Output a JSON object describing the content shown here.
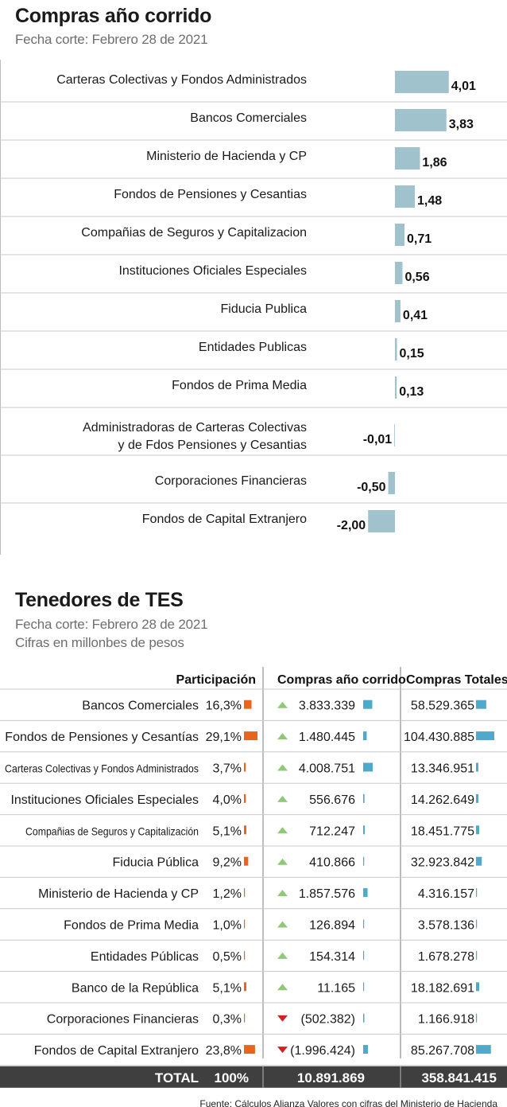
{
  "top": {
    "title": "Compras año corrido",
    "subtitle": "Fecha corte: Febrero 28 de 2021"
  },
  "bottom": {
    "title": "Tenedores de TES",
    "subtitle1": "Fecha corte: Febrero 28 de 2021",
    "subtitle2": "Cifras en millonbes de pesos",
    "headers": {
      "participacion": "Participación",
      "compras": "Compras año corrido",
      "totales": "Compras Totales"
    },
    "total": {
      "label": "TOTAL",
      "participacion": "100%",
      "compras": "10.891.869",
      "totales": "358.841.415"
    },
    "source": "Fuente:  Cálculos Alianza Valores con cifras del Ministerio de Hacienda"
  },
  "colors": {
    "bar": "#9fc2cc",
    "orange": "#e8651e",
    "blue": "#4fa9c9",
    "green": "#90c878",
    "red": "#d32020",
    "totalbg": "#3f3f3f"
  },
  "chart_data": [
    {
      "type": "bar",
      "orientation": "horizontal",
      "title": "Compras año corrido",
      "categories": [
        "Carteras Colectivas y Fondos Administrados",
        "Bancos Comerciales",
        "Ministerio de Hacienda y CP",
        "Fondos de Pensiones y Cesantias",
        "Compañias de Seguros y Capitalizacion",
        "Instituciones Oficiales Especiales",
        "Fiducia Publica",
        "Entidades Publicas",
        "Fondos de Prima Media",
        [
          "Administradoras de Carteras Colectivas",
          "y de Fdos Pensiones y Cesantias"
        ],
        "Corporaciones Financieras",
        "Fondos de Capital Extranjero"
      ],
      "values": [
        4.01,
        3.83,
        1.86,
        1.48,
        0.71,
        0.56,
        0.41,
        0.15,
        0.13,
        -0.01,
        -0.5,
        -2.0
      ],
      "labels": [
        "4,01",
        "3,83",
        "1,86",
        "1,48",
        "0,71",
        "0,56",
        "0,41",
        "0,15",
        "0,13",
        "-0,01",
        "-0,50",
        "-2,00"
      ]
    },
    {
      "type": "table",
      "title": "Tenedores de TES",
      "rows": [
        {
          "name": "Bancos Comerciales",
          "part_label": "16,3%",
          "part": 16.3,
          "trend": "up",
          "compras_label": "3.833.339",
          "compras": 3833339,
          "totales_label": "58.529.365",
          "totales": 58529365
        },
        {
          "name": "Fondos de Pensiones y Cesantías",
          "part_label": "29,1%",
          "part": 29.1,
          "trend": "up",
          "compras_label": "1.480.445",
          "compras": 1480445,
          "totales_label": "104.430.885",
          "totales": 104430885
        },
        {
          "name": "Carteras Colectivas y Fondos Administrados",
          "part_label": "3,7%",
          "part": 3.7,
          "trend": "up",
          "compras_label": "4.008.751",
          "compras": 4008751,
          "totales_label": "13.346.951",
          "totales": 13346951
        },
        {
          "name": "Instituciones Oficiales Especiales",
          "part_label": "4,0%",
          "part": 4.0,
          "trend": "up",
          "compras_label": "556.676",
          "compras": 556676,
          "totales_label": "14.262.649",
          "totales": 14262649
        },
        {
          "name": "Compañias de Seguros y Capitalización",
          "part_label": "5,1%",
          "part": 5.1,
          "trend": "up",
          "compras_label": "712.247",
          "compras": 712247,
          "totales_label": "18.451.775",
          "totales": 18451775
        },
        {
          "name": "Fiducia Pública",
          "part_label": "9,2%",
          "part": 9.2,
          "trend": "up",
          "compras_label": "410.866",
          "compras": 410866,
          "totales_label": "32.923.842",
          "totales": 32923842
        },
        {
          "name": "Ministerio de Hacienda y CP",
          "part_label": "1,2%",
          "part": 1.2,
          "trend": "up",
          "compras_label": "1.857.576",
          "compras": 1857576,
          "totales_label": "4.316.157",
          "totales": 4316157
        },
        {
          "name": "Fondos de Prima Media",
          "part_label": "1,0%",
          "part": 1.0,
          "trend": "up",
          "compras_label": "126.894",
          "compras": 126894,
          "totales_label": "3.578.136",
          "totales": 3578136
        },
        {
          "name": "Entidades Públicas",
          "part_label": "0,5%",
          "part": 0.5,
          "trend": "up",
          "compras_label": "154.314",
          "compras": 154314,
          "totales_label": "1.678.278",
          "totales": 1678278
        },
        {
          "name": "Banco de la República",
          "part_label": "5,1%",
          "part": 5.1,
          "trend": "up",
          "compras_label": "11.165",
          "compras": 11165,
          "totales_label": "18.182.691",
          "totales": 18182691
        },
        {
          "name": "Corporaciones Financieras",
          "part_label": "0,3%",
          "part": 0.3,
          "trend": "down",
          "compras_label": "(502.382)",
          "compras": -502382,
          "totales_label": "1.166.918",
          "totales": 1166918
        },
        {
          "name": "Fondos de Capital Extranjero",
          "part_label": "23,8%",
          "part": 23.8,
          "trend": "down",
          "compras_label": "(1.996.424)",
          "compras": -1996424,
          "totales_label": "85.267.708",
          "totales": 85267708
        }
      ]
    }
  ]
}
